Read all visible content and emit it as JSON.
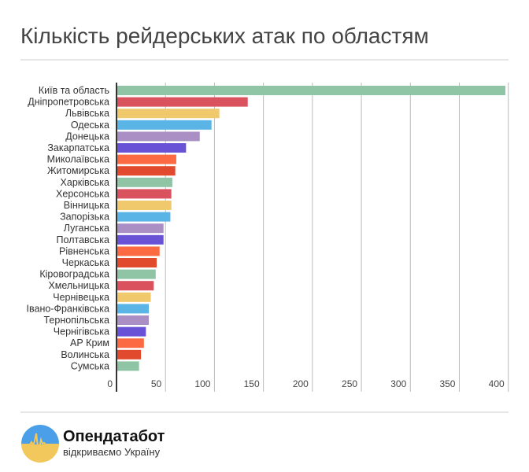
{
  "chart_data": {
    "type": "bar",
    "orientation": "horizontal",
    "title": "Кількість рейдерських атак по областям",
    "categories": [
      "Київ та область",
      "Дніпропетровська",
      "Львівська",
      "Одеська",
      "Донецька",
      "Закарпатська",
      "Миколаївська",
      "Житомирська",
      "Харківська",
      "Херсонська",
      "Вінницька",
      "Запорізька",
      "Луганська",
      "Полтавська",
      "Рівненська",
      "Черкаська",
      "Кіровоградська",
      "Хмельницька",
      "Чернівецька",
      "Івано-Франківська",
      "Тернопільська",
      "Чернігівська",
      "АР Крим",
      "Волинська",
      "Сумська"
    ],
    "values": [
      397,
      134,
      105,
      97,
      85,
      71,
      61,
      60,
      57,
      56,
      56,
      55,
      48,
      48,
      44,
      41,
      40,
      38,
      35,
      33,
      33,
      30,
      28,
      25,
      23
    ],
    "xlim": [
      0,
      400
    ],
    "ticks": [
      0,
      50,
      100,
      150,
      200,
      250,
      300,
      350,
      400
    ],
    "grid": true,
    "colors": [
      "#8fc4a5",
      "#d9525e",
      "#efc96b",
      "#5ab4e5",
      "#a98fc4",
      "#6a52d6",
      "#fb6a43",
      "#e24a2e"
    ]
  },
  "footer": {
    "brand": "Опендатабот",
    "tagline": "відкриваємо Україну",
    "logo_colors": {
      "top": "#4a9fe8",
      "bottom": "#f2c75c"
    }
  }
}
